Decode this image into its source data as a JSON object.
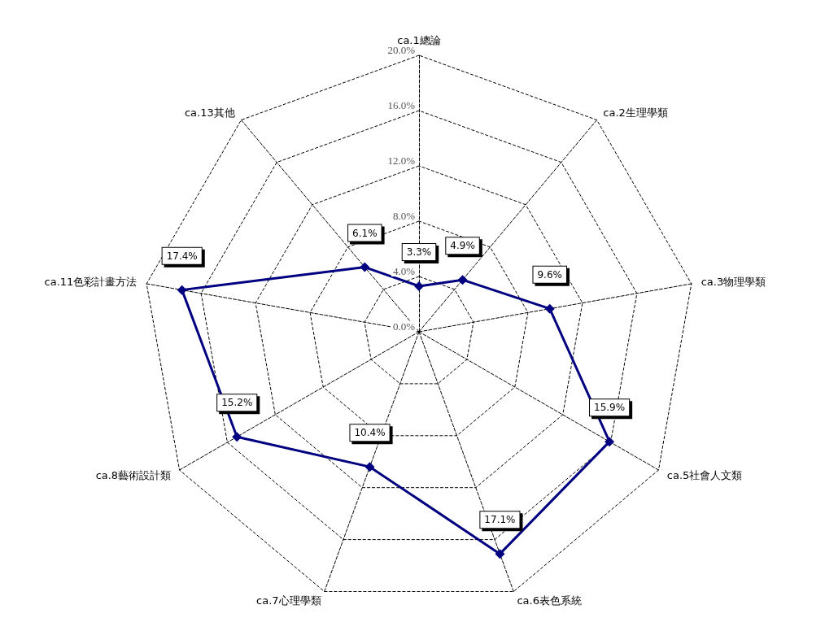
{
  "chart_data": {
    "type": "radar",
    "categories": [
      "ca.1總論",
      "ca.2生理學類",
      "ca.3物理學類",
      "ca.5社會人文類",
      "ca.6表色系統",
      "ca.7心理學類",
      "ca.8藝術設計類",
      "ca.11色彩計畫方法",
      "ca.13其他"
    ],
    "series": [
      {
        "color": "#000080",
        "values": [
          3.3,
          4.9,
          9.6,
          15.9,
          17.1,
          10.4,
          15.2,
          17.4,
          6.1
        ],
        "value_labels": [
          "3.3%",
          "4.9%",
          "9.6%",
          "15.9%",
          "17.1%",
          "10.4%",
          "15.2%",
          "17.4%",
          "6.1%"
        ]
      }
    ],
    "ylim": [
      0,
      20
    ],
    "yticks": [
      {
        "value": 0,
        "label": "0.0%"
      },
      {
        "value": 4,
        "label": "4.0%"
      },
      {
        "value": 8,
        "label": "8.0%"
      },
      {
        "value": 12,
        "label": "12.0%"
      },
      {
        "value": 16,
        "label": "16.0%"
      },
      {
        "value": 20,
        "label": "20.0%"
      }
    ],
    "grid": true,
    "marker": "diamond",
    "line_style": "solid"
  }
}
